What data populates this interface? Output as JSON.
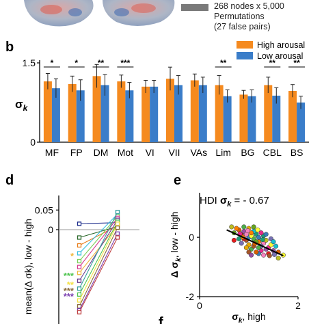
{
  "top_panel": {
    "legend_lines": [
      "268 nodes x 5,000",
      "Permutations",
      "(27 false pairs)"
    ],
    "colors": {
      "swatch": "#7a7a7a",
      "brain_base": "#aeb6c6",
      "brain_red": "#d9685e",
      "brain_blue": "#3b68b0"
    }
  },
  "chart_data": [
    {
      "type": "bar",
      "panel_label": "b",
      "categories": [
        "MF",
        "FP",
        "DM",
        "Mot",
        "VI",
        "VII",
        "VAs",
        "Lim",
        "BG",
        "CBL",
        "BS"
      ],
      "series": [
        {
          "name": "High arousal",
          "color": "#f58a1f",
          "values": [
            1.15,
            1.1,
            1.25,
            1.15,
            1.05,
            1.2,
            1.17,
            1.08,
            0.9,
            1.08,
            0.97
          ],
          "errors": [
            0.15,
            0.15,
            0.22,
            0.12,
            0.12,
            0.22,
            0.12,
            0.18,
            0.08,
            0.15,
            0.12
          ]
        },
        {
          "name": "Low arousal",
          "color": "#3a7dc9",
          "values": [
            1.02,
            0.98,
            1.08,
            0.98,
            1.05,
            1.08,
            1.08,
            0.87,
            0.87,
            0.88,
            0.75
          ],
          "errors": [
            0.18,
            0.2,
            0.2,
            0.15,
            0.12,
            0.18,
            0.15,
            0.12,
            0.12,
            0.15,
            0.12
          ]
        }
      ],
      "significance": [
        "*",
        "*",
        "**",
        "***",
        "",
        "",
        "",
        "**",
        "",
        "**",
        "**"
      ],
      "ylabel": "σk",
      "ylim": [
        0,
        1.5
      ],
      "yticks": [
        "0",
        "1.5"
      ],
      "legend_position": "top-right"
    },
    {
      "type": "line",
      "panel_label": "d",
      "ylabel": "mean(Δ σk), low - high",
      "yticks": [
        "0.05",
        "0"
      ],
      "ylim": [
        -0.24,
        0.08
      ],
      "reference_line": 0,
      "star_groups": [
        {
          "label": "*",
          "color": "#f0b73b"
        },
        {
          "label": "***",
          "color": "#4fc44f"
        },
        {
          "label": "**",
          "color": "#f5e246"
        },
        {
          "label": "***",
          "color": "#8b6b3d"
        },
        {
          "label": "***",
          "color": "#7b3fb0"
        }
      ],
      "pairs": [
        {
          "color": "#1a2a8a",
          "left": 0.015,
          "right": 0.018
        },
        {
          "color": "#2c6a2c",
          "left": -0.02,
          "right": 0.008
        },
        {
          "color": "#e87d1a",
          "left": -0.04,
          "right": 0.01
        },
        {
          "color": "#3ac0e0",
          "left": -0.06,
          "right": 0.04
        },
        {
          "color": "#7ad05a",
          "left": -0.08,
          "right": 0.035
        },
        {
          "color": "#d53b8e",
          "left": -0.095,
          "right": 0.03
        },
        {
          "color": "#f0b73b",
          "left": -0.11,
          "right": 0.012
        },
        {
          "color": "#6a3b8e",
          "left": -0.13,
          "right": 0.025
        },
        {
          "color": "#3aa0a0",
          "left": -0.15,
          "right": 0.045
        },
        {
          "color": "#4fc44f",
          "left": -0.165,
          "right": 0.02
        },
        {
          "color": "#f5e246",
          "left": -0.18,
          "right": 0.015
        },
        {
          "color": "#8b6b3d",
          "left": -0.195,
          "right": 0.005
        },
        {
          "color": "#7b3fb0",
          "left": -0.205,
          "right": -0.01
        },
        {
          "color": "#c04040",
          "left": -0.21,
          "right": -0.02
        }
      ]
    },
    {
      "type": "scatter",
      "panel_label": "e",
      "annotation": "HDI σk = - 0.67",
      "xlabel": "σk, high",
      "ylabel": "Δ σk, low - high",
      "xlim": [
        0,
        2
      ],
      "ylim": [
        -2,
        1.5
      ],
      "xticks": [
        "0",
        "2"
      ],
      "yticks": [
        "0",
        "-2"
      ],
      "fit_line": {
        "x": [
          0.55,
          1.7
        ],
        "y": [
          0.25,
          -0.62
        ],
        "color": "#000000"
      },
      "points": [
        [
          0.85,
          0.1
        ],
        [
          1.0,
          0.0
        ],
        [
          1.1,
          -0.05
        ],
        [
          0.9,
          0.2
        ],
        [
          1.2,
          -0.15
        ],
        [
          1.05,
          0.05
        ],
        [
          0.95,
          -0.1
        ],
        [
          1.3,
          -0.2
        ],
        [
          1.15,
          0.1
        ],
        [
          0.8,
          0.25
        ],
        [
          1.25,
          -0.3
        ],
        [
          1.4,
          -0.35
        ],
        [
          0.7,
          0.15
        ],
        [
          1.0,
          -0.25
        ],
        [
          1.1,
          0.2
        ],
        [
          1.35,
          -0.1
        ],
        [
          0.9,
          -0.05
        ],
        [
          1.2,
          0.0
        ],
        [
          1.05,
          -0.4
        ],
        [
          1.5,
          -0.45
        ],
        [
          0.75,
          0.3
        ],
        [
          1.45,
          -0.25
        ],
        [
          1.1,
          -0.3
        ],
        [
          0.95,
          0.1
        ],
        [
          1.3,
          0.05
        ],
        [
          1.6,
          -0.5
        ],
        [
          0.85,
          -0.2
        ],
        [
          1.25,
          -0.45
        ],
        [
          1.15,
          -0.15
        ],
        [
          1.0,
          0.3
        ],
        [
          1.55,
          -0.3
        ],
        [
          0.65,
          0.35
        ],
        [
          1.4,
          -0.55
        ],
        [
          1.2,
          -0.55
        ],
        [
          0.9,
          0.35
        ],
        [
          1.35,
          -0.4
        ],
        [
          1.05,
          0.15
        ],
        [
          1.7,
          -0.6
        ],
        [
          1.0,
          -0.5
        ],
        [
          1.3,
          -0.6
        ],
        [
          0.8,
          -0.05
        ],
        [
          1.15,
          -0.5
        ],
        [
          1.45,
          -0.05
        ],
        [
          1.25,
          0.15
        ],
        [
          1.1,
          0.35
        ],
        [
          0.95,
          -0.35
        ],
        [
          1.5,
          -0.15
        ],
        [
          1.6,
          -0.7
        ],
        [
          0.7,
          -0.1
        ],
        [
          1.35,
          0.1
        ],
        [
          1.2,
          -0.35
        ],
        [
          1.05,
          -0.6
        ],
        [
          0.88,
          0.0
        ],
        [
          1.18,
          0.25
        ],
        [
          1.42,
          -0.62
        ],
        [
          0.98,
          0.22
        ],
        [
          1.28,
          -0.08
        ],
        [
          1.12,
          -0.22
        ],
        [
          1.52,
          -0.58
        ],
        [
          0.82,
          0.12
        ]
      ],
      "point_colors": [
        "#e41a1c",
        "#377eb8",
        "#4daf4a",
        "#984ea3",
        "#ff7f00",
        "#ffff33",
        "#a65628",
        "#f781bf",
        "#1b9e77",
        "#d95f02",
        "#7570b3",
        "#e7298a",
        "#66a61e",
        "#e6ab02",
        "#17becf",
        "#bcbd22"
      ]
    },
    {
      "type": "other",
      "panel_label": "f"
    }
  ]
}
